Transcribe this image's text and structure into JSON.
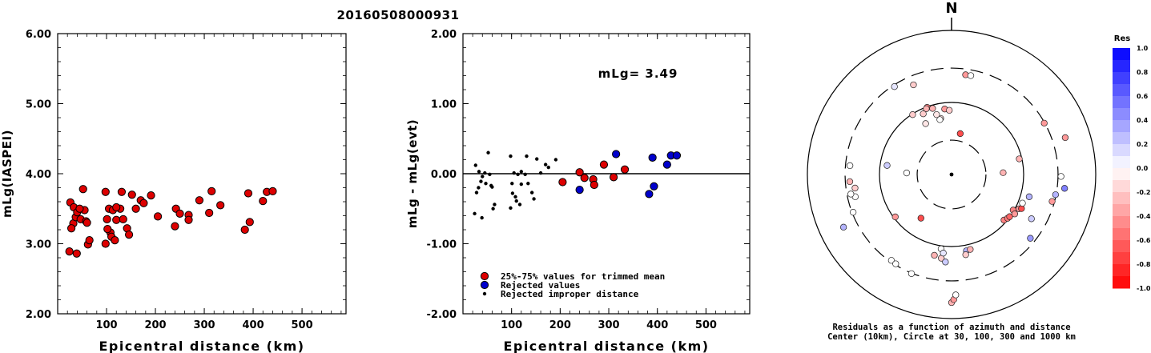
{
  "figure_title": "20160508000931",
  "chart_data": [
    {
      "type": "scatter",
      "title": "",
      "xlabel": "Epicentral distance (km)",
      "ylabel": "mLg(IASPEI)",
      "xlim": [
        0,
        590
      ],
      "ylim": [
        2.0,
        6.0
      ],
      "xticks": [
        100,
        200,
        300,
        400,
        500
      ],
      "xtick_labels": [
        "100",
        "200",
        "300",
        "400",
        "500"
      ],
      "yticks": [
        2.0,
        3.0,
        4.0,
        5.0,
        6.0
      ],
      "ytick_labels": [
        "2.00",
        "3.00",
        "4.00",
        "5.00",
        "6.00"
      ],
      "series": [
        {
          "color": "#dd0000",
          "points": [
            [
              24,
              2.89
            ],
            [
              32,
              3.29
            ],
            [
              37,
              3.38
            ],
            [
              26,
              3.59
            ],
            [
              33,
              3.52
            ],
            [
              40,
              3.45
            ],
            [
              28,
              3.22
            ],
            [
              39,
              2.86
            ],
            [
              47,
              3.35
            ],
            [
              52,
              3.78
            ],
            [
              55,
              3.48
            ],
            [
              58,
              3.32
            ],
            [
              60,
              3.3
            ],
            [
              62,
              2.99
            ],
            [
              65,
              3.05
            ],
            [
              45,
              3.5
            ],
            [
              98,
              3.74
            ],
            [
              101,
              3.35
            ],
            [
              105,
              3.5
            ],
            [
              108,
              3.16
            ],
            [
              110,
              3.1
            ],
            [
              113,
              3.48
            ],
            [
              117,
              3.05
            ],
            [
              120,
              3.34
            ],
            [
              98,
              3.0
            ],
            [
              102,
              3.21
            ],
            [
              128,
              3.5
            ],
            [
              131,
              3.74
            ],
            [
              134,
              3.35
            ],
            [
              142,
              3.22
            ],
            [
              146,
              3.13
            ],
            [
              152,
              3.7
            ],
            [
              160,
              3.5
            ],
            [
              170,
              3.62
            ],
            [
              176,
              3.58
            ],
            [
              191,
              3.69
            ],
            [
              205,
              3.39
            ],
            [
              240,
              3.25
            ],
            [
              242,
              3.5
            ],
            [
              250,
              3.43
            ],
            [
              268,
              3.41
            ],
            [
              268,
              3.34
            ],
            [
              290,
              3.62
            ],
            [
              310,
              3.44
            ],
            [
              315,
              3.75
            ],
            [
              333,
              3.55
            ],
            [
              383,
              3.2
            ],
            [
              390,
              3.72
            ],
            [
              393,
              3.31
            ],
            [
              420,
              3.61
            ],
            [
              428,
              3.74
            ],
            [
              440,
              3.75
            ],
            [
              120,
              3.52
            ]
          ]
        }
      ]
    },
    {
      "type": "scatter",
      "title": "",
      "xlabel": "Epicentral distance (km)",
      "ylabel": "mLg - mLg(evt)",
      "xlim": [
        0,
        590
      ],
      "ylim": [
        -2.0,
        2.0
      ],
      "xticks": [
        100,
        200,
        300,
        400,
        500
      ],
      "xtick_labels": [
        "100",
        "200",
        "300",
        "400",
        "500"
      ],
      "yticks": [
        -2.0,
        -1.0,
        0.0,
        1.0,
        2.0
      ],
      "ytick_labels": [
        "-2.00",
        "-1.00",
        "0.00",
        "1.00",
        "2.00"
      ],
      "zero_line": true,
      "annotation": "mLg= 3.49",
      "legend": {
        "placement": "bottom-center",
        "entries": [
          {
            "label": "25%-75% values for trimmed mean",
            "color": "#dd0000",
            "marker": "large"
          },
          {
            "label": "Rejected values",
            "color": "#0000cc",
            "marker": "large"
          },
          {
            "label": "Rejected improper distance",
            "color": "#000000",
            "marker": "small"
          }
        ]
      },
      "series": [
        {
          "name": "25%-75% values for trimmed mean",
          "color": "#dd0000",
          "points": [
            [
              205,
              -0.12
            ],
            [
              240,
              0.02
            ],
            [
              250,
              -0.06
            ],
            [
              268,
              -0.08
            ],
            [
              270,
              -0.16
            ],
            [
              290,
              0.13
            ],
            [
              310,
              -0.05
            ],
            [
              333,
              0.06
            ]
          ]
        },
        {
          "name": "Rejected values",
          "color": "#0000cc",
          "points": [
            [
              240,
              -0.23
            ],
            [
              315,
              0.28
            ],
            [
              383,
              -0.29
            ],
            [
              390,
              0.23
            ],
            [
              393,
              -0.18
            ],
            [
              420,
              0.13
            ],
            [
              428,
              0.26
            ],
            [
              440,
              0.26
            ]
          ]
        },
        {
          "name": "Rejected improper distance",
          "color": "#000000",
          "points": [
            [
              24,
              -0.57
            ],
            [
              26,
              0.12
            ],
            [
              28,
              -0.27
            ],
            [
              32,
              -0.2
            ],
            [
              33,
              0.03
            ],
            [
              37,
              -0.11
            ],
            [
              39,
              -0.63
            ],
            [
              40,
              -0.04
            ],
            [
              45,
              0.01
            ],
            [
              47,
              -0.14
            ],
            [
              52,
              0.3
            ],
            [
              55,
              -0.01
            ],
            [
              58,
              -0.17
            ],
            [
              60,
              -0.19
            ],
            [
              62,
              -0.5
            ],
            [
              65,
              -0.44
            ],
            [
              98,
              0.25
            ],
            [
              98,
              -0.49
            ],
            [
              101,
              -0.14
            ],
            [
              102,
              -0.28
            ],
            [
              105,
              0.01
            ],
            [
              108,
              -0.33
            ],
            [
              110,
              -0.39
            ],
            [
              113,
              -0.01
            ],
            [
              117,
              -0.44
            ],
            [
              120,
              -0.15
            ],
            [
              120,
              0.03
            ],
            [
              128,
              -0.01
            ],
            [
              131,
              0.25
            ],
            [
              134,
              -0.14
            ],
            [
              142,
              -0.27
            ],
            [
              146,
              -0.36
            ],
            [
              152,
              0.21
            ],
            [
              160,
              0.01
            ],
            [
              170,
              0.13
            ],
            [
              176,
              0.09
            ],
            [
              191,
              0.2
            ]
          ]
        }
      ]
    },
    {
      "type": "polar-scatter",
      "title": "N",
      "caption_line1": "Residuals as a function of azimuth and distance",
      "caption_line2": "Center (10km), Circle at 30, 100, 300 and 1000 km",
      "rings": [
        {
          "km": 30,
          "style": "dashed"
        },
        {
          "km": 100,
          "style": "solid"
        },
        {
          "km": 300,
          "style": "dashed"
        },
        {
          "km": 1000,
          "style": "solid"
        }
      ],
      "points": [
        {
          "az": 8,
          "dist": 250,
          "res": -0.4
        },
        {
          "az": 11,
          "dist": 250,
          "res": 0.0
        },
        {
          "az": -33,
          "dist": 285,
          "res": 0.1
        },
        {
          "az": -23,
          "dist": 225,
          "res": -0.2
        },
        {
          "az": -20,
          "dist": 98,
          "res": -0.5
        },
        {
          "az": -21,
          "dist": 95,
          "res": -0.3
        },
        {
          "az": -16,
          "dist": 90,
          "res": -0.3
        },
        {
          "az": -33,
          "dist": 98,
          "res": -0.2
        },
        {
          "az": -6,
          "dist": 82,
          "res": -0.4
        },
        {
          "az": -2,
          "dist": 78,
          "res": -0.2
        },
        {
          "az": -11,
          "dist": 62,
          "res": -0.1
        },
        {
          "az": -27,
          "dist": 62,
          "res": -0.1
        },
        {
          "az": -25,
          "dist": 85,
          "res": -0.2
        },
        {
          "az": -14,
          "dist": 72,
          "res": -0.1
        },
        {
          "az": -12,
          "dist": 60,
          "res": 0.0
        },
        {
          "az": 12,
          "dist": 38,
          "res": -0.7
        },
        {
          "az": 61,
          "dist": 295,
          "res": -0.4
        },
        {
          "az": 77,
          "dist": 92,
          "res": -0.3
        },
        {
          "az": 88,
          "dist": 52,
          "res": -0.3
        },
        {
          "az": -88,
          "dist": 42,
          "res": 0.0
        },
        {
          "az": -82,
          "dist": 80,
          "res": 0.2
        },
        {
          "az": -85,
          "dist": 260,
          "res": 0.0
        },
        {
          "az": -98,
          "dist": 225,
          "res": -0.2
        },
        {
          "az": -103,
          "dist": 235,
          "res": 0.0
        },
        {
          "az": -101,
          "dist": 265,
          "res": 0.0
        },
        {
          "az": -111,
          "dist": 290,
          "res": 0.0
        },
        {
          "az": -116,
          "dist": 465,
          "res": 0.3
        },
        {
          "az": -94,
          "dist": 260,
          "res": -0.3
        },
        {
          "az": -145,
          "dist": 55,
          "res": -0.7
        },
        {
          "az": -127,
          "dist": 95,
          "res": -0.4
        },
        {
          "az": -145,
          "dist": 285,
          "res": 0.0
        },
        {
          "az": -148,
          "dist": 290,
          "res": 0.0
        },
        {
          "az": -158,
          "dist": 305,
          "res": 0.0
        },
        {
          "az": -168,
          "dist": 140,
          "res": -0.3
        },
        {
          "az": -172,
          "dist": 110,
          "res": 0.0
        },
        {
          "az": -173,
          "dist": 148,
          "res": -0.2
        },
        {
          "az": -174,
          "dist": 125,
          "res": 0.1
        },
        {
          "az": -176,
          "dist": 165,
          "res": 0.2
        },
        {
          "az": 180,
          "dist": 600,
          "res": -0.3
        },
        {
          "az": 179,
          "dist": 545,
          "res": -0.4
        },
        {
          "az": 178,
          "dist": 470,
          "res": 0.0
        },
        {
          "az": 169,
          "dist": 120,
          "res": 0.3
        },
        {
          "az": 170,
          "dist": 135,
          "res": -0.2
        },
        {
          "az": 166,
          "dist": 118,
          "res": -0.3
        },
        {
          "az": 131,
          "dist": 92,
          "res": -0.5
        },
        {
          "az": 128,
          "dist": 97,
          "res": -0.5
        },
        {
          "az": 126,
          "dist": 99,
          "res": -0.6
        },
        {
          "az": 120,
          "dist": 97,
          "res": -0.5
        },
        {
          "az": 122,
          "dist": 108,
          "res": -0.4
        },
        {
          "az": 117,
          "dist": 112,
          "res": -0.4
        },
        {
          "az": 116,
          "dist": 120,
          "res": -0.7
        },
        {
          "az": 112,
          "dist": 115,
          "res": 0.0
        },
        {
          "az": 106,
          "dist": 132,
          "res": 0.3
        },
        {
          "az": 129,
          "dist": 255,
          "res": 0.4
        },
        {
          "az": 119,
          "dist": 185,
          "res": 0.2
        },
        {
          "az": 101,
          "dist": 295,
          "res": 0.3
        },
        {
          "az": 105,
          "dist": 278,
          "res": -0.4
        },
        {
          "az": 97,
          "dist": 380,
          "res": 0.5
        },
        {
          "az": 91,
          "dist": 330,
          "res": 0.0
        },
        {
          "az": 72,
          "dist": 455,
          "res": -0.4
        }
      ]
    }
  ],
  "colorbar": {
    "title": "Res",
    "ticks": [
      "1.0",
      "0.8",
      "0.6",
      "0.4",
      "0.2",
      "0.0",
      "-0.2",
      "-0.4",
      "-0.6",
      "-0.8",
      "-1.0"
    ],
    "top_color": "#0000ff",
    "mid_color": "#ffffff",
    "bottom_color": "#ff0000"
  }
}
